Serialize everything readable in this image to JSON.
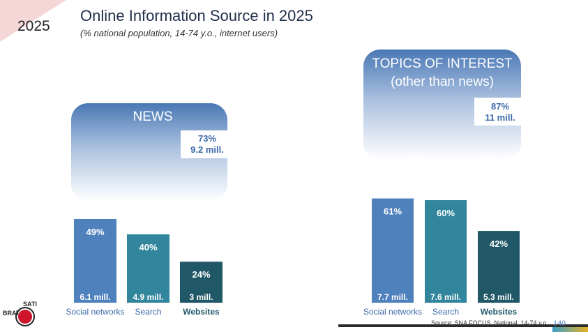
{
  "slide": {
    "year": "2025",
    "title": "Online Information Source in 2025",
    "subtitle": "(% national population, 14-74 y.o., internet users)",
    "source": "Source: SNA FOCUS, National, 14-74 y.o.",
    "page_number": "140",
    "logo_text": "BRAT",
    "logo_badge": "SATI"
  },
  "colors": {
    "social": "#4f81bd",
    "search": "#31859c",
    "websites": "#215868",
    "panel_top": "#4a78b5",
    "panel_text": "#3c6aa8"
  },
  "chart_data": [
    {
      "type": "bar",
      "title": "NEWS",
      "total_label": [
        "73%",
        "9.2 mill."
      ],
      "categories": [
        "Social networks",
        "Search",
        "Websites"
      ],
      "values": [
        49,
        40,
        24
      ],
      "value_labels": [
        "49%",
        "40%",
        "24%"
      ],
      "counts": [
        "6.1 mill.",
        "4.9 mill.",
        "3 mill."
      ],
      "ylim": [
        0,
        100
      ]
    },
    {
      "type": "bar",
      "title": "TOPICS OF INTEREST (other than news)",
      "title_lines": [
        "TOPICS OF INTEREST",
        "(other than news)"
      ],
      "total_label": [
        "87%",
        "11 mill."
      ],
      "categories": [
        "Social networks",
        "Search",
        "Websites"
      ],
      "values": [
        61,
        60,
        42
      ],
      "value_labels": [
        "61%",
        "60%",
        "42%"
      ],
      "counts": [
        "7.7 mill.",
        "7.6 mill.",
        "5.3 mill."
      ],
      "ylim": [
        0,
        100
      ]
    }
  ]
}
